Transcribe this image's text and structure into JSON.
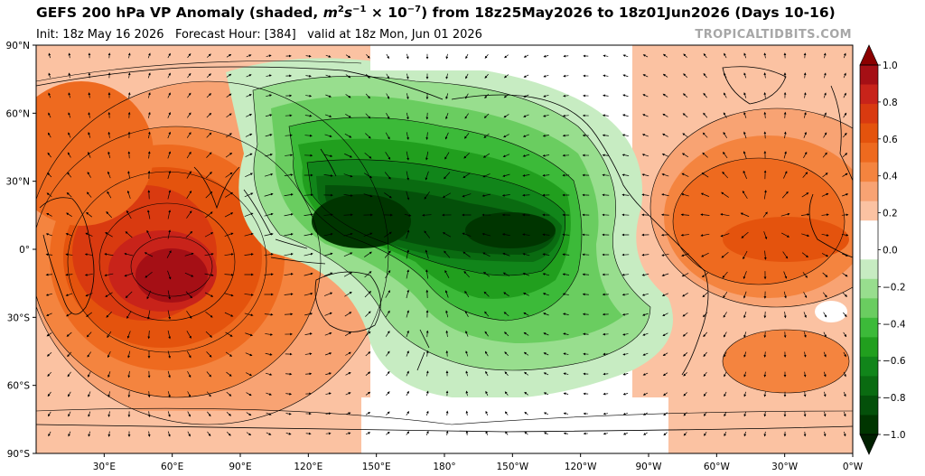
{
  "title": {
    "prefix": "GEFS 200 hPa VP Anomaly (shaded, ",
    "unit_m": "m",
    "unit_m_exp": "2",
    "unit_s": "s",
    "unit_s_exp": "−1",
    "unit_times": "× 10",
    "unit_pow": "−7",
    "suffix": ") from 18z25May2026 to 18z01Jun2026 (Days 10-16)"
  },
  "subtitle": {
    "init": "Init: 18z May 16 2026",
    "forecast_hour": "Forecast Hour: [384]",
    "valid": "valid at 18z Mon, Jun 01 2026"
  },
  "watermark": "TROPICALTIDBITS.COM",
  "map": {
    "projection": "plate-carree",
    "central_longitude": 180,
    "lat_labels": [
      "90°N",
      "60°N",
      "30°N",
      "0°",
      "30°S",
      "60°S",
      "90°S"
    ],
    "lon_labels": [
      "30°E",
      "60°E",
      "90°E",
      "120°E",
      "150°E",
      "180°",
      "150°W",
      "120°W",
      "90°W",
      "60°W",
      "30°W",
      "0°W"
    ]
  },
  "colorbar": {
    "ticks": [
      "1.0",
      "0.8",
      "0.6",
      "0.4",
      "0.2",
      "0.0",
      "−0.2",
      "−0.4",
      "−0.6",
      "−0.8",
      "−1.0"
    ],
    "colors": [
      "#a50f15",
      "#c8231a",
      "#d93a10",
      "#e4530d",
      "#ee6a1f",
      "#f4843f",
      "#f8a373",
      "#fbc2a2",
      "#ffffff",
      "#ffffff",
      "#c7ecc2",
      "#98de8e",
      "#6acd60",
      "#3cba39",
      "#219f1e",
      "#11851a",
      "#0a6b11",
      "#04500a",
      "#003500"
    ]
  },
  "field": {
    "anomalies": [
      {
        "name": "indian-ocean-maximum",
        "lon": 65,
        "lat": -18,
        "value": 1.0
      },
      {
        "name": "pacific-minimum-west",
        "lon": 155,
        "lat": 10,
        "value": -1.0
      },
      {
        "name": "pacific-minimum-east",
        "lon": 200,
        "lat": 5,
        "value": -1.0
      },
      {
        "name": "atlantic-maximum",
        "lon": 330,
        "lat": 10,
        "value": 0.6
      },
      {
        "name": "south-atlantic-maximum",
        "lon": 330,
        "lat": -40,
        "value": 0.4
      }
    ]
  }
}
